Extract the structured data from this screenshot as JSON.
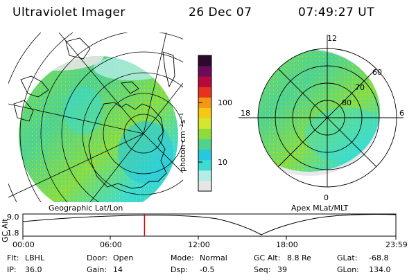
{
  "header": {
    "instrument": "Ultraviolet Imager",
    "date": "26 Dec 07",
    "time": "07:49:27 UT"
  },
  "geo_panel": {
    "caption": "Geographic Lat/Lon"
  },
  "apex_panel": {
    "caption": "Apex MLat/MLT",
    "mlt_labels": [
      "12",
      "6",
      "0",
      "18"
    ],
    "lat_labels": [
      "60",
      "70",
      "80"
    ]
  },
  "colorbar": {
    "unit_label": "photon cm⁻²s⁻¹",
    "ticks": [
      "100",
      "10"
    ],
    "log_scale": true,
    "colors": [
      "#e6e6e6",
      "#b4ece6",
      "#3cdcd2",
      "#28c8dc",
      "#50d28c",
      "#8cdc3c",
      "#d2e632",
      "#f5c814",
      "#f59614",
      "#e6321e",
      "#b40a3c",
      "#6e0a5a",
      "#2d0a2d"
    ]
  },
  "orbit_plot": {
    "ylabel": "GC Alt",
    "yticks": [
      "9.0",
      "1.8"
    ],
    "xticks": [
      "00:00",
      "06:00",
      "12:00",
      "18:00",
      "23:59"
    ],
    "current_time_fraction": 0.326,
    "marker_color": "#e00000"
  },
  "info": {
    "row1": [
      {
        "k": "Flt:",
        "v": "LBHL"
      },
      {
        "k": "Door:",
        "v": "Open"
      },
      {
        "k": "Mode:",
        "v": "Normal"
      },
      {
        "k": "GC Alt:",
        "v": "8.8 Re"
      },
      {
        "k": "GLat:",
        "v": "-68.8"
      }
    ],
    "row2": [
      {
        "k": "IP:",
        "v": "36.0"
      },
      {
        "k": "Gain:",
        "v": "14"
      },
      {
        "k": "Dsp:",
        "v": "-0.5"
      },
      {
        "k": "Seq:",
        "v": "39"
      },
      {
        "k": "GLon:",
        "v": "134.0"
      }
    ]
  }
}
